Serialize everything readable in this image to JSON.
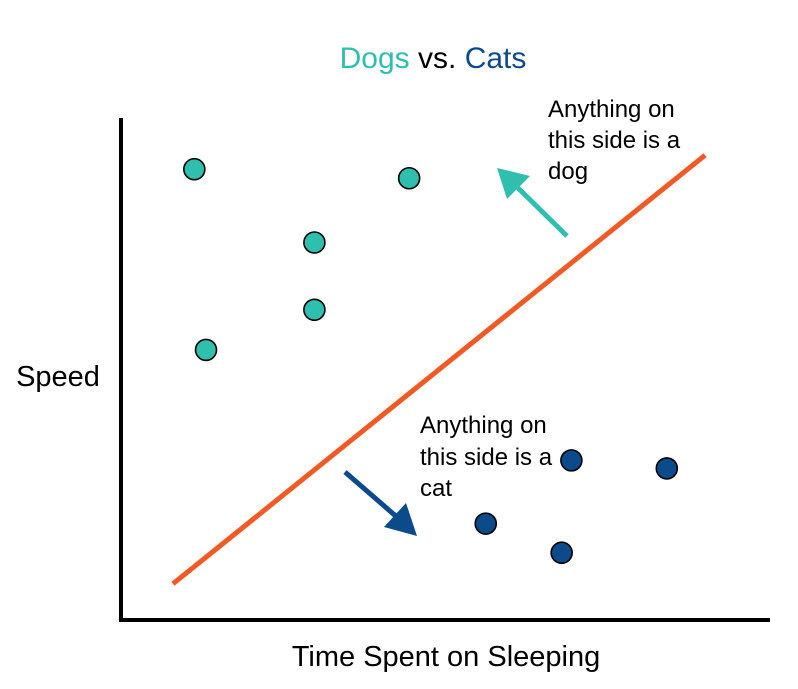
{
  "chart_data": {
    "type": "scatter",
    "title": {
      "part1": "Dogs",
      "part2": " vs. ",
      "part3": "Cats"
    },
    "xlabel": "Time Spent on Sleeping",
    "ylabel": "Speed",
    "grid": false,
    "xlim": [
      0,
      100
    ],
    "ylim": [
      0,
      100
    ],
    "series": [
      {
        "name": "Dogs",
        "color": "#2ebfae",
        "points": [
          {
            "x": 11.3,
            "y": 89.8
          },
          {
            "x": 13.1,
            "y": 53.8
          },
          {
            "x": 29.8,
            "y": 75.2
          },
          {
            "x": 29.8,
            "y": 61.8
          },
          {
            "x": 44.4,
            "y": 88.0
          }
        ]
      },
      {
        "name": "Cats",
        "color": "#0b4a8b",
        "points": [
          {
            "x": 56.2,
            "y": 19.2
          },
          {
            "x": 69.4,
            "y": 31.8
          },
          {
            "x": 67.9,
            "y": 13.4
          },
          {
            "x": 84.1,
            "y": 30.2
          }
        ]
      }
    ],
    "decision_boundary": {
      "color": "#f15a24",
      "from": {
        "x": 8.0,
        "y": 7.2
      },
      "to": {
        "x": 90.0,
        "y": 92.6
      }
    },
    "annotations": [
      {
        "name": "dog-side",
        "lines": [
          "Anything on",
          "this side is a",
          "dog"
        ],
        "arrow_color": "#2ebfae"
      },
      {
        "name": "cat-side",
        "lines": [
          "Anything on",
          "this side is a",
          "cat"
        ],
        "arrow_color": "#0b4a8b"
      }
    ],
    "title_colors": {
      "dogs": "#2ebfae",
      "vs": "#000000",
      "cats": "#0b4a8b"
    }
  }
}
